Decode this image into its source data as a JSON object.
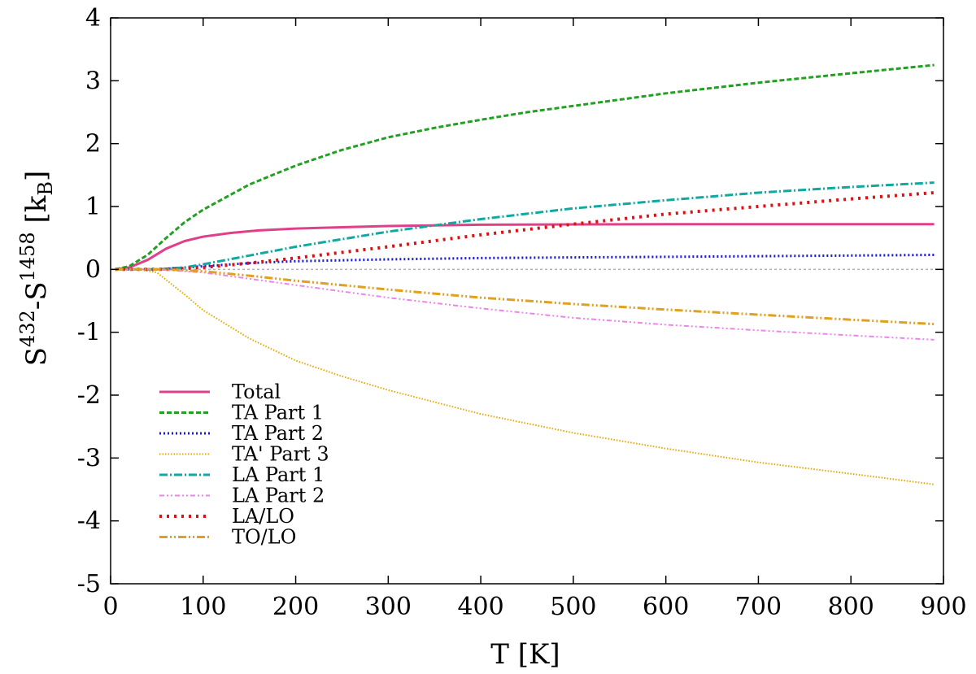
{
  "chart_data": {
    "type": "line",
    "xlabel": "T [K]",
    "ylabel": {
      "base": "S",
      "sup1": "432",
      "dash": "-S",
      "sup2": "1458",
      "unit_open": " [k",
      "unit_sub": "B",
      "unit_close": "]"
    },
    "xlim": [
      0,
      900
    ],
    "ylim": [
      -5,
      4
    ],
    "xticks": [
      "0",
      "100",
      "200",
      "300",
      "400",
      "500",
      "600",
      "700",
      "800",
      "900"
    ],
    "yticks": [
      "-5",
      "-4",
      "-3",
      "-2",
      "-1",
      "0",
      "1",
      "2",
      "3",
      "4"
    ],
    "grid": false,
    "legend_position": "left-lower",
    "zero_line_color": "#b0b0b0",
    "series": [
      {
        "name": "Total",
        "color": "#e0408a",
        "dash": "solid",
        "width": 3,
        "x": [
          5,
          20,
          40,
          60,
          80,
          100,
          130,
          160,
          200,
          250,
          300,
          400,
          500,
          600,
          700,
          800,
          890
        ],
        "y": [
          0,
          0.03,
          0.15,
          0.33,
          0.45,
          0.52,
          0.58,
          0.62,
          0.65,
          0.67,
          0.69,
          0.71,
          0.715,
          0.72,
          0.72,
          0.72,
          0.72
        ]
      },
      {
        "name": "TA Part 1",
        "color": "#22a022",
        "dash": "6,3",
        "width": 3,
        "x": [
          5,
          20,
          40,
          60,
          80,
          100,
          150,
          200,
          250,
          300,
          350,
          400,
          450,
          500,
          600,
          700,
          800,
          890
        ],
        "y": [
          0,
          0.05,
          0.23,
          0.5,
          0.75,
          0.95,
          1.35,
          1.65,
          1.9,
          2.1,
          2.25,
          2.38,
          2.5,
          2.6,
          2.8,
          2.97,
          3.12,
          3.25
        ]
      },
      {
        "name": "TA Part 2",
        "color": "#1a1adc",
        "dash": "2,3",
        "width": 3,
        "x": [
          5,
          50,
          100,
          150,
          200,
          300,
          400,
          500,
          600,
          700,
          800,
          890
        ],
        "y": [
          0,
          0,
          0.05,
          0.1,
          0.13,
          0.16,
          0.18,
          0.19,
          0.2,
          0.21,
          0.22,
          0.23
        ]
      },
      {
        "name": "TA' Part 3",
        "color": "#e8a800",
        "dash": "1.5,2",
        "width": 2,
        "x": [
          5,
          30,
          50,
          80,
          100,
          150,
          200,
          250,
          300,
          400,
          500,
          600,
          700,
          800,
          890
        ],
        "y": [
          0,
          0,
          -0.05,
          -0.4,
          -0.65,
          -1.1,
          -1.45,
          -1.7,
          -1.92,
          -2.3,
          -2.6,
          -2.85,
          -3.07,
          -3.25,
          -3.42
        ]
      },
      {
        "name": "LA Part 1",
        "color": "#10a8a0",
        "dash": "10,3,2,3",
        "width": 3,
        "x": [
          5,
          50,
          80,
          100,
          150,
          200,
          250,
          300,
          350,
          400,
          500,
          600,
          700,
          800,
          890
        ],
        "y": [
          0,
          0,
          0.03,
          0.08,
          0.22,
          0.36,
          0.48,
          0.6,
          0.7,
          0.8,
          0.97,
          1.1,
          1.22,
          1.31,
          1.38
        ]
      },
      {
        "name": "LA Part 2",
        "color": "#ee82ee",
        "dash": "6,3,2,3,2,3",
        "width": 2,
        "x": [
          5,
          50,
          100,
          150,
          200,
          300,
          400,
          500,
          600,
          700,
          800,
          890
        ],
        "y": [
          0,
          0,
          -0.05,
          -0.15,
          -0.25,
          -0.45,
          -0.62,
          -0.77,
          -0.88,
          -0.97,
          -1.05,
          -1.12
        ]
      },
      {
        "name": "LA/LO",
        "color": "#dd1111",
        "dash": "3,6",
        "width": 4,
        "x": [
          5,
          60,
          100,
          150,
          200,
          300,
          400,
          500,
          600,
          700,
          800,
          890
        ],
        "y": [
          0,
          0,
          0.03,
          0.1,
          0.18,
          0.36,
          0.55,
          0.72,
          0.88,
          1.0,
          1.12,
          1.22
        ]
      },
      {
        "name": "TO/LO",
        "color": "#e0a020",
        "dash": "10,3,2,3,2,3",
        "width": 3,
        "x": [
          5,
          60,
          100,
          150,
          200,
          300,
          400,
          500,
          600,
          700,
          800,
          890
        ],
        "y": [
          0,
          0,
          -0.03,
          -0.1,
          -0.18,
          -0.32,
          -0.45,
          -0.55,
          -0.64,
          -0.72,
          -0.8,
          -0.87
        ]
      }
    ]
  }
}
